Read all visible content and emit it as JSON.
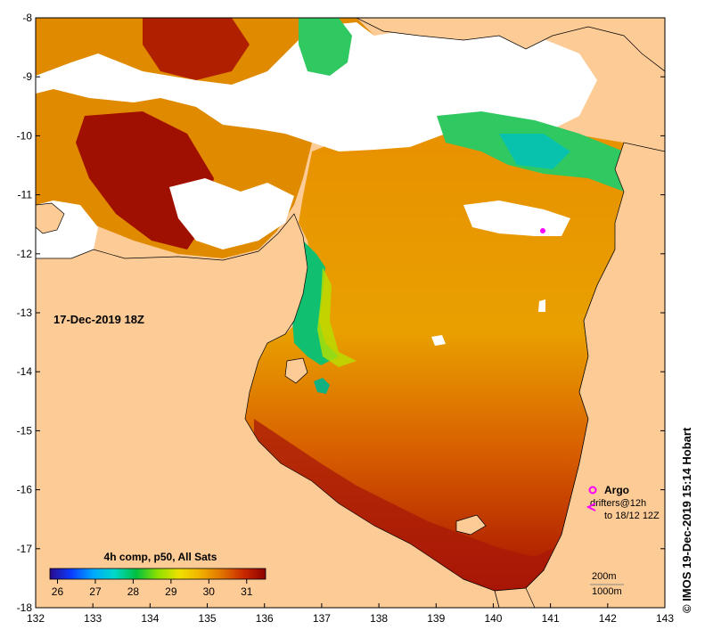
{
  "map": {
    "timestamp": "17-Dec-2019 18Z",
    "credit": "© IMOS 19-Dec-2019 15:14 Hobart",
    "x_axis": {
      "label": "",
      "min": 132,
      "max": 143,
      "ticks": [
        132,
        133,
        134,
        135,
        136,
        137,
        138,
        139,
        140,
        141,
        142,
        143
      ]
    },
    "y_axis": {
      "label": "",
      "min": -18,
      "max": -8,
      "ticks": [
        -8,
        -9,
        -10,
        -11,
        -12,
        -13,
        -14,
        -15,
        -16,
        -17,
        -18
      ]
    },
    "colorbar": {
      "title": "4h comp, p50, All Sats",
      "min": 25.8,
      "max": 31.5,
      "ticks": [
        26,
        27,
        28,
        29,
        30,
        31
      ],
      "stops": [
        "#2a0a8c",
        "#0a3cff",
        "#00a8ff",
        "#00d8c8",
        "#00c040",
        "#8ee000",
        "#f0e000",
        "#f0b000",
        "#e07000",
        "#c82800",
        "#8c0000"
      ]
    },
    "legend": {
      "argo_label": "Argo",
      "drifter_label": "drifters@12h",
      "drifter_sublabel": "to 18/12 12Z",
      "marker_color": "#ff00ff"
    },
    "depth_legend": {
      "contour_1": "200m",
      "contour_2": "1000m"
    },
    "colors": {
      "land": "#fdcb96",
      "no_data": "#ffffff",
      "frame": "#000000"
    }
  }
}
